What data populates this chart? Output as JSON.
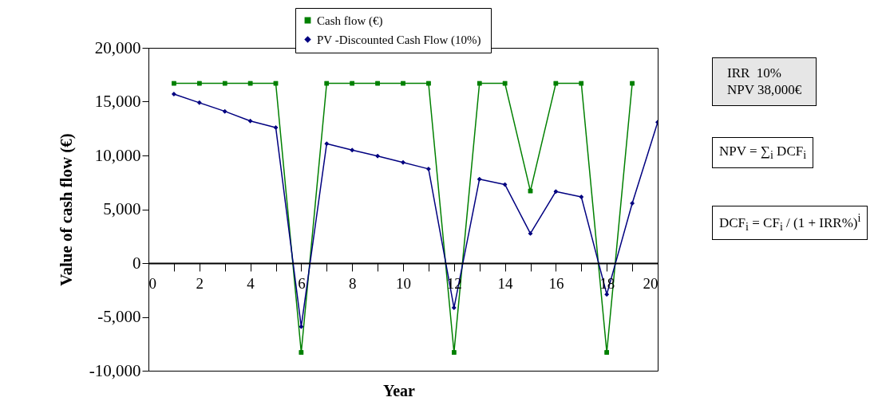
{
  "chart_data": {
    "type": "line",
    "xlabel": "Year",
    "ylabel": "Value of cash flow (€)",
    "x": [
      1,
      2,
      3,
      4,
      5,
      6,
      7,
      8,
      9,
      10,
      11,
      12,
      13,
      14,
      15,
      16,
      17,
      18,
      19,
      20
    ],
    "series": [
      {
        "name": "Cash flow (€)",
        "color": "#008000",
        "marker": "square",
        "values": [
          16700,
          16700,
          16700,
          16700,
          16700,
          -8300,
          16700,
          16700,
          16700,
          16700,
          16700,
          -8300,
          16700,
          16700,
          6700,
          16700,
          16700,
          -8300,
          16700,
          null
        ]
      },
      {
        "name": "PV -Discounted  Cash Flow (10%)",
        "color": "#000080",
        "marker": "diamond",
        "values": [
          15700,
          14900,
          14100,
          13200,
          12600,
          -5900,
          11100,
          10500,
          9950,
          9350,
          8750,
          -4150,
          7800,
          7300,
          2750,
          6650,
          6150,
          -2900,
          5550,
          13100
        ]
      }
    ],
    "xlim": [
      0,
      20
    ],
    "xticks": [
      0,
      {
        "value": 1,
        "label": null
      },
      2,
      {
        "value": 3,
        "label": null
      },
      4,
      {
        "value": 5,
        "label": null
      },
      6,
      {
        "value": 7,
        "label": null
      },
      8,
      {
        "value": 9,
        "label": null
      },
      10,
      {
        "value": 11,
        "label": null
      },
      12,
      {
        "value": 13,
        "label": null
      },
      14,
      {
        "value": 15,
        "label": null
      },
      16,
      {
        "value": 17,
        "label": null
      },
      18,
      {
        "value": 19,
        "label": null
      },
      20
    ],
    "ylim": [
      -10000,
      20000
    ],
    "yticks": [
      {
        "value": -10000,
        "label": "-10,000"
      },
      {
        "value": -5000,
        "label": "-5,000"
      },
      0,
      {
        "value": 5000,
        "label": "5,000"
      },
      {
        "value": 10000,
        "label": "10,000"
      },
      {
        "value": 15000,
        "label": "15,000"
      },
      {
        "value": 20000,
        "label": "20,000"
      }
    ],
    "legend": "top",
    "line_style": "solid",
    "annotations": [
      "IRR  10%\nNPV 38,000€",
      "NPV = ∑$_{i}$ DCF$_{i}$",
      "DCF$_{i}$ = CF$_{i}$ / (1 + IRR%)$^{i}$"
    ]
  }
}
